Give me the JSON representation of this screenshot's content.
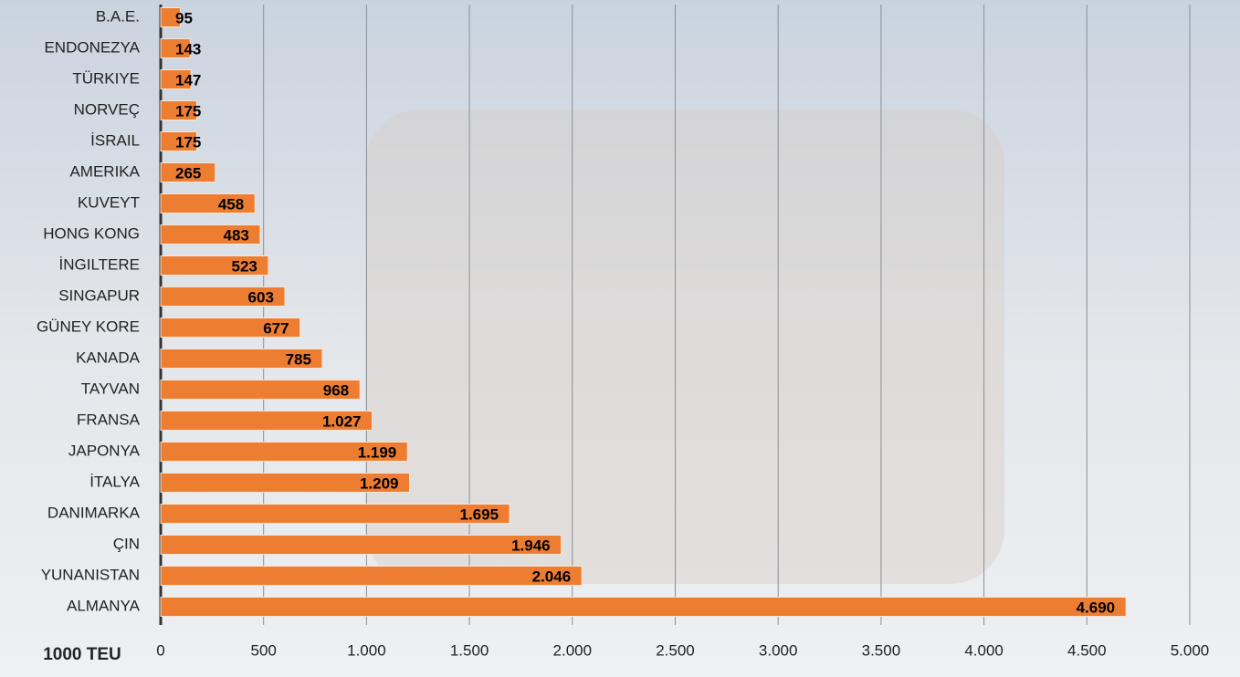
{
  "chart_data": {
    "type": "bar",
    "orientation": "horizontal",
    "x_label": "1000 TEU",
    "categories": [
      "B.A.E.",
      "ENDONEZYA",
      "TÜRKIYE",
      "NORVEÇ",
      "İSRAIL",
      "AMERIKA",
      "KUVEYT",
      "HONG KONG",
      "İNGILTERE",
      "SINGAPUR",
      "GÜNEY KORE",
      "KANADA",
      "TAYVAN",
      "FRANSA",
      "JAPONYA",
      "İTALYA",
      "DANIMARKA",
      "ÇIN",
      "YUNANISTAN",
      "ALMANYA"
    ],
    "values": [
      95,
      143,
      147,
      175,
      175,
      265,
      458,
      483,
      523,
      603,
      677,
      785,
      968,
      1027,
      1199,
      1209,
      1695,
      1946,
      2046,
      4690
    ],
    "value_labels": [
      "95",
      "143",
      "147",
      "175",
      "175",
      "265",
      "458",
      "483",
      "523",
      "603",
      "677",
      "785",
      "968",
      "1.027",
      "1.199",
      "1.209",
      "1.695",
      "1.946",
      "2.046",
      "4.690"
    ],
    "color": "#ed7d31",
    "xlim": [
      0,
      5000
    ],
    "xticks": [
      0,
      500,
      {
        "value": 1000,
        "label": "1.000"
      },
      {
        "value": 1500,
        "label": "1.500"
      },
      {
        "value": 2000,
        "label": "2.000"
      },
      {
        "value": 2500,
        "label": "2.500"
      },
      {
        "value": 3000,
        "label": "3.000"
      },
      {
        "value": 3500,
        "label": "3.500"
      },
      {
        "value": 4000,
        "label": "4.000"
      },
      {
        "value": 4500,
        "label": "4.500"
      },
      {
        "value": 5000,
        "label": "5.000"
      }
    ],
    "grid": true
  }
}
